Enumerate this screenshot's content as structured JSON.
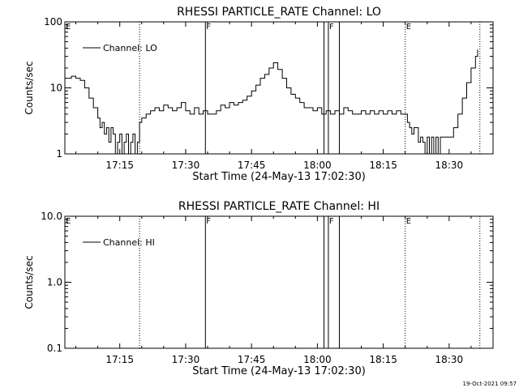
{
  "footer": {
    "timestamp": "19-Oct-2021 09:57"
  },
  "chart_data": [
    {
      "type": "line",
      "title": "RHESSI PARTICLE_RATE Channel: LO",
      "xlabel": "Start Time (24-May-13 17:02:30)",
      "ylabel": "Counts/sec",
      "x_scale": "time_minutes",
      "xlim": [
        "17:02:30",
        "18:40:00"
      ],
      "x_ticks": [
        "17:15",
        "17:30",
        "17:45",
        "18:00",
        "18:15",
        "18:30"
      ],
      "y_scale": "log",
      "ylim": [
        1,
        100
      ],
      "y_ticks": [
        "1",
        "10",
        "100"
      ],
      "legend": {
        "placement": "top-left",
        "entries": [
          "Channel: LO"
        ]
      },
      "flags": [
        {
          "label": "E",
          "time": "17:02:30",
          "style": "none"
        },
        {
          "label": "F",
          "time": "17:34:30",
          "style": "solid"
        },
        {
          "label": "F",
          "time": "18:02:30",
          "style": "solid"
        },
        {
          "label": "E",
          "time": "18:20:00",
          "style": "dotted"
        }
      ],
      "markers": [
        {
          "time": "17:19:30",
          "style": "dotted"
        },
        {
          "time": "18:01:30",
          "style": "solid"
        },
        {
          "time": "18:05:00",
          "style": "solid"
        },
        {
          "time": "18:37:00",
          "style": "dotted"
        }
      ],
      "series": [
        {
          "name": "Channel: LO",
          "x": [
            "17:02:30",
            "17:04:00",
            "17:05:00",
            "17:06:00",
            "17:07:00",
            "17:08:00",
            "17:09:00",
            "17:10:00",
            "17:10:30",
            "17:11:00",
            "17:11:30",
            "17:12:00",
            "17:12:30",
            "17:13:00",
            "17:13:30",
            "17:14:00",
            "17:14:30",
            "17:15:00",
            "17:15:30",
            "17:16:00",
            "17:16:30",
            "17:17:00",
            "17:17:30",
            "17:18:00",
            "17:18:30",
            "17:19:00",
            "17:19:30",
            "17:20:00",
            "17:21:00",
            "17:22:00",
            "17:23:00",
            "17:24:00",
            "17:25:00",
            "17:26:00",
            "17:27:00",
            "17:28:00",
            "17:29:00",
            "17:30:00",
            "17:31:00",
            "17:32:00",
            "17:33:00",
            "17:34:00",
            "17:35:00",
            "17:36:00",
            "17:37:00",
            "17:38:00",
            "17:39:00",
            "17:40:00",
            "17:41:00",
            "17:42:00",
            "17:43:00",
            "17:44:00",
            "17:45:00",
            "17:46:00",
            "17:47:00",
            "17:48:00",
            "17:49:00",
            "17:50:00",
            "17:51:00",
            "17:52:00",
            "17:53:00",
            "17:54:00",
            "17:55:00",
            "17:56:00",
            "17:57:00",
            "17:58:00",
            "17:59:00",
            "18:00:00",
            "18:01:00",
            "18:02:00",
            "18:03:00",
            "18:04:00",
            "18:05:00",
            "18:06:00",
            "18:07:00",
            "18:08:00",
            "18:09:00",
            "18:10:00",
            "18:11:00",
            "18:12:00",
            "18:13:00",
            "18:14:00",
            "18:15:00",
            "18:16:00",
            "18:17:00",
            "18:18:00",
            "18:19:00",
            "18:20:00",
            "18:20:30",
            "18:21:00",
            "18:21:30",
            "18:22:00",
            "18:22:30",
            "18:23:00",
            "18:23:30",
            "18:24:00",
            "18:24:30",
            "18:25:00",
            "18:25:30",
            "18:26:00",
            "18:26:30",
            "18:27:00",
            "18:27:30",
            "18:28:00",
            "18:28:30",
            "18:29:00",
            "18:29:30",
            "18:30:00",
            "18:31:00",
            "18:32:00",
            "18:33:00",
            "18:34:00",
            "18:35:00",
            "18:36:00",
            "18:36:30"
          ],
          "values": [
            14,
            15,
            14,
            13,
            10,
            7,
            5,
            3.5,
            2.5,
            3,
            2,
            2.5,
            1.5,
            2.5,
            2,
            1,
            1.5,
            2,
            1,
            1.5,
            2,
            1,
            1.5,
            2,
            1,
            1.5,
            3,
            3.5,
            4,
            4.5,
            5,
            4.5,
            5.5,
            5,
            4.5,
            5,
            6,
            4.5,
            4,
            5,
            4,
            4.5,
            4,
            4,
            4.5,
            5.5,
            5,
            6,
            5.5,
            6,
            6.5,
            7.5,
            9,
            11,
            14,
            16,
            20,
            24,
            19,
            14,
            10,
            8,
            7,
            6,
            5,
            5,
            4.5,
            5,
            4,
            4.5,
            4,
            4.5,
            4,
            5,
            4.5,
            4,
            4,
            4.5,
            4,
            4.5,
            4,
            4.5,
            4,
            4.5,
            4,
            4.5,
            4,
            4,
            3,
            2.5,
            2,
            2.5,
            2.5,
            1.5,
            1.8,
            1.5,
            1,
            1.8,
            1,
            1.8,
            1,
            1.8,
            1,
            1.8,
            1.8,
            1.8,
            1.8,
            1.8,
            2.5,
            4,
            7,
            12,
            20,
            30,
            38
          ]
        }
      ]
    },
    {
      "type": "line",
      "title": "RHESSI PARTICLE_RATE Channel: HI",
      "xlabel": "Start Time (24-May-13 17:02:30)",
      "ylabel": "Counts/sec",
      "x_scale": "time_minutes",
      "xlim": [
        "17:02:30",
        "18:40:00"
      ],
      "x_ticks": [
        "17:15",
        "17:30",
        "17:45",
        "18:00",
        "18:15",
        "18:30"
      ],
      "y_scale": "log",
      "ylim": [
        0.1,
        10
      ],
      "y_ticks": [
        "0.1",
        "1.0",
        "10.0"
      ],
      "legend": {
        "placement": "top-left",
        "entries": [
          "Channel: HI"
        ]
      },
      "flags": [
        {
          "label": "E",
          "time": "17:02:30",
          "style": "none"
        },
        {
          "label": "F",
          "time": "17:34:30",
          "style": "solid"
        },
        {
          "label": "F",
          "time": "18:02:30",
          "style": "solid"
        },
        {
          "label": "E",
          "time": "18:20:00",
          "style": "dotted"
        }
      ],
      "markers": [
        {
          "time": "17:19:30",
          "style": "dotted"
        },
        {
          "time": "18:01:30",
          "style": "solid"
        },
        {
          "time": "18:05:00",
          "style": "solid"
        },
        {
          "time": "18:37:00",
          "style": "dotted"
        }
      ],
      "series": [
        {
          "name": "Channel: HI",
          "x": [],
          "values": []
        }
      ]
    }
  ]
}
